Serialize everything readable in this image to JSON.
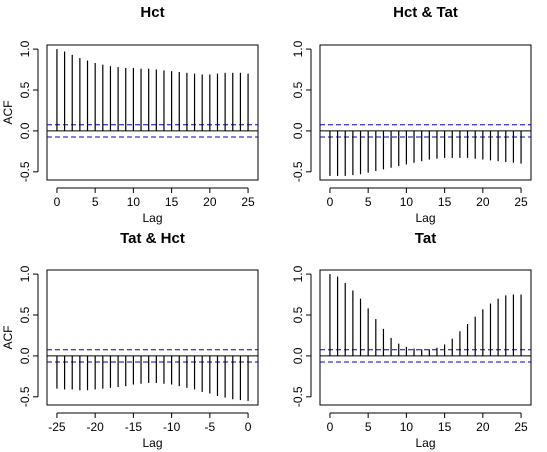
{
  "chart_data": [
    {
      "type": "bar",
      "subtype": "acf-stem",
      "title": "Hct",
      "xlabel": "Lag",
      "ylabel": "ACF",
      "xlim": [
        -1.3,
        26.3
      ],
      "ylim": [
        -0.6,
        1.05
      ],
      "xticks": [
        0,
        5,
        10,
        15,
        20,
        25
      ],
      "yticks": [
        -0.5,
        0.0,
        0.5,
        1.0
      ],
      "ytick_labels": [
        "-0.5",
        "0.0",
        "0.5",
        "1.0"
      ],
      "ci_bound": 0.075,
      "ci_color": "#0000cc",
      "x": [
        0,
        1,
        2,
        3,
        4,
        5,
        6,
        7,
        8,
        9,
        10,
        11,
        12,
        13,
        14,
        15,
        16,
        17,
        18,
        19,
        20,
        21,
        22,
        23,
        24,
        25
      ],
      "values": [
        1.0,
        0.97,
        0.93,
        0.89,
        0.86,
        0.83,
        0.81,
        0.79,
        0.78,
        0.77,
        0.77,
        0.76,
        0.76,
        0.75,
        0.74,
        0.73,
        0.72,
        0.71,
        0.7,
        0.69,
        0.69,
        0.7,
        0.71,
        0.71,
        0.71,
        0.7
      ]
    },
    {
      "type": "bar",
      "subtype": "acf-stem",
      "title": "Hct & Tat",
      "xlabel": "Lag",
      "ylabel": "",
      "xlim": [
        -1.3,
        26.3
      ],
      "ylim": [
        -0.6,
        1.05
      ],
      "xticks": [
        0,
        5,
        10,
        15,
        20,
        25
      ],
      "yticks": [
        -0.5,
        0.0,
        0.5,
        1.0
      ],
      "ytick_labels": [
        "-0.5",
        "0.0",
        "0.5",
        "1.0"
      ],
      "ci_bound": 0.075,
      "ci_color": "#0000cc",
      "x": [
        0,
        1,
        2,
        3,
        4,
        5,
        6,
        7,
        8,
        9,
        10,
        11,
        12,
        13,
        14,
        15,
        16,
        17,
        18,
        19,
        20,
        21,
        22,
        23,
        24,
        25
      ],
      "values": [
        -0.55,
        -0.55,
        -0.55,
        -0.54,
        -0.53,
        -0.51,
        -0.49,
        -0.47,
        -0.45,
        -0.43,
        -0.41,
        -0.39,
        -0.37,
        -0.35,
        -0.34,
        -0.33,
        -0.33,
        -0.33,
        -0.33,
        -0.34,
        -0.35,
        -0.36,
        -0.37,
        -0.38,
        -0.39,
        -0.4
      ]
    },
    {
      "type": "bar",
      "subtype": "acf-stem",
      "title": "Tat & Hct",
      "xlabel": "Lag",
      "ylabel": "ACF",
      "xlim": [
        -26.3,
        1.3
      ],
      "ylim": [
        -0.6,
        1.05
      ],
      "xticks": [
        -25,
        -20,
        -15,
        -10,
        -5,
        0
      ],
      "yticks": [
        -0.5,
        0.0,
        0.5,
        1.0
      ],
      "ytick_labels": [
        "-0.5",
        "0.0",
        "0.5",
        "1.0"
      ],
      "ci_bound": 0.075,
      "ci_color": "#0000cc",
      "x": [
        -25,
        -24,
        -23,
        -22,
        -21,
        -20,
        -19,
        -18,
        -17,
        -16,
        -15,
        -14,
        -13,
        -12,
        -11,
        -10,
        -9,
        -8,
        -7,
        -6,
        -5,
        -4,
        -3,
        -2,
        -1,
        0
      ],
      "values": [
        -0.4,
        -0.41,
        -0.41,
        -0.42,
        -0.42,
        -0.41,
        -0.4,
        -0.39,
        -0.38,
        -0.37,
        -0.35,
        -0.34,
        -0.33,
        -0.33,
        -0.34,
        -0.35,
        -0.37,
        -0.39,
        -0.41,
        -0.44,
        -0.46,
        -0.49,
        -0.51,
        -0.53,
        -0.54,
        -0.55
      ]
    },
    {
      "type": "bar",
      "subtype": "acf-stem",
      "title": "Tat",
      "xlabel": "Lag",
      "ylabel": "",
      "xlim": [
        -1.3,
        26.3
      ],
      "ylim": [
        -0.6,
        1.05
      ],
      "xticks": [
        0,
        5,
        10,
        15,
        20,
        25
      ],
      "yticks": [
        -0.5,
        0.0,
        0.5,
        1.0
      ],
      "ytick_labels": [
        "-0.5",
        "0.0",
        "0.5",
        "1.0"
      ],
      "ci_bound": 0.075,
      "ci_color": "#0000cc",
      "x": [
        0,
        1,
        2,
        3,
        4,
        5,
        6,
        7,
        8,
        9,
        10,
        11,
        12,
        13,
        14,
        15,
        16,
        17,
        18,
        19,
        20,
        21,
        22,
        23,
        24,
        25
      ],
      "values": [
        1.0,
        0.97,
        0.89,
        0.8,
        0.7,
        0.58,
        0.45,
        0.33,
        0.22,
        0.15,
        0.11,
        0.09,
        0.08,
        0.08,
        0.1,
        0.14,
        0.21,
        0.3,
        0.39,
        0.48,
        0.57,
        0.64,
        0.7,
        0.74,
        0.75,
        0.75
      ]
    }
  ]
}
